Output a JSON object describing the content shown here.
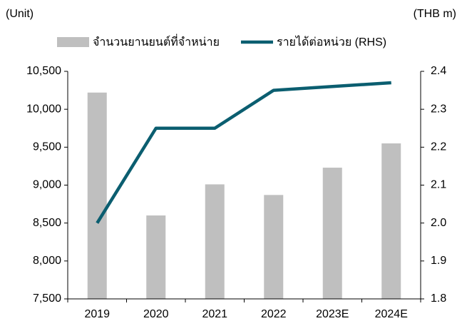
{
  "chart_data": {
    "type": "bar_line",
    "y_label": "(Unit)",
    "y2_label": "(THB m)",
    "categories": [
      "2019",
      "2020",
      "2021",
      "2022",
      "2023E",
      "2024E"
    ],
    "series": [
      {
        "name": "จำนวนยานยนต์ที่จำหน่าย",
        "type": "bar",
        "color": "#bfbfbf",
        "axis": "y",
        "values": [
          10220,
          8600,
          9010,
          8870,
          9230,
          9550
        ]
      },
      {
        "name": "รายได้ต่อหน่วย (RHS)",
        "type": "line",
        "color": "#0b5e70",
        "axis": "y2",
        "values": [
          2.0,
          2.25,
          2.25,
          2.35,
          2.36,
          2.37
        ]
      }
    ],
    "ylim": [
      7500,
      10500
    ],
    "yticks": [
      {
        "value": 7500,
        "label": "7,500"
      },
      {
        "value": 8000,
        "label": "8,000"
      },
      {
        "value": 8500,
        "label": "8,500"
      },
      {
        "value": 9000,
        "label": "9,000"
      },
      {
        "value": 9500,
        "label": "9,500"
      },
      {
        "value": 10000,
        "label": "10,000"
      },
      {
        "value": 10500,
        "label": "10,500"
      }
    ],
    "y2lim": [
      1.8,
      2.4
    ],
    "y2ticks": [
      1.8,
      1.9,
      {
        "value": 2,
        "label": "2.0"
      },
      2.1,
      2.2,
      2.3,
      2.4
    ],
    "legend": "top"
  }
}
